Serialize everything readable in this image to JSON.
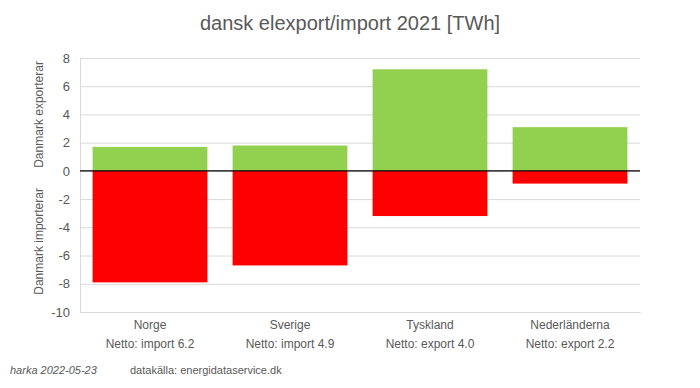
{
  "chart_data": {
    "type": "bar",
    "title": "dansk elexport/import 2021 [TWh]",
    "categories": [
      "Norge",
      "Sverige",
      "Tyskland",
      "Nederländerna"
    ],
    "annotations": [
      "Netto: import 6.2",
      "Netto: import 4.9",
      "Netto: export 4.0",
      "Netto: export 2.2"
    ],
    "footer": [
      "harka 2022-05-23",
      "datakälla: energidataservice.dk"
    ],
    "series": [
      {
        "name": "Danmark exporterar",
        "color": "#92d050",
        "values": [
          1.7,
          1.8,
          7.2,
          3.1
        ]
      },
      {
        "name": "Danmark importerar",
        "color": "#ff0000",
        "values": [
          -7.9,
          -6.7,
          -3.2,
          -0.9
        ]
      }
    ],
    "stacked": true,
    "ylim": [
      -10,
      8
    ],
    "yticks": [
      -10,
      -8,
      -6,
      -4,
      -2,
      0,
      2,
      4,
      6,
      8
    ],
    "grid": true
  }
}
